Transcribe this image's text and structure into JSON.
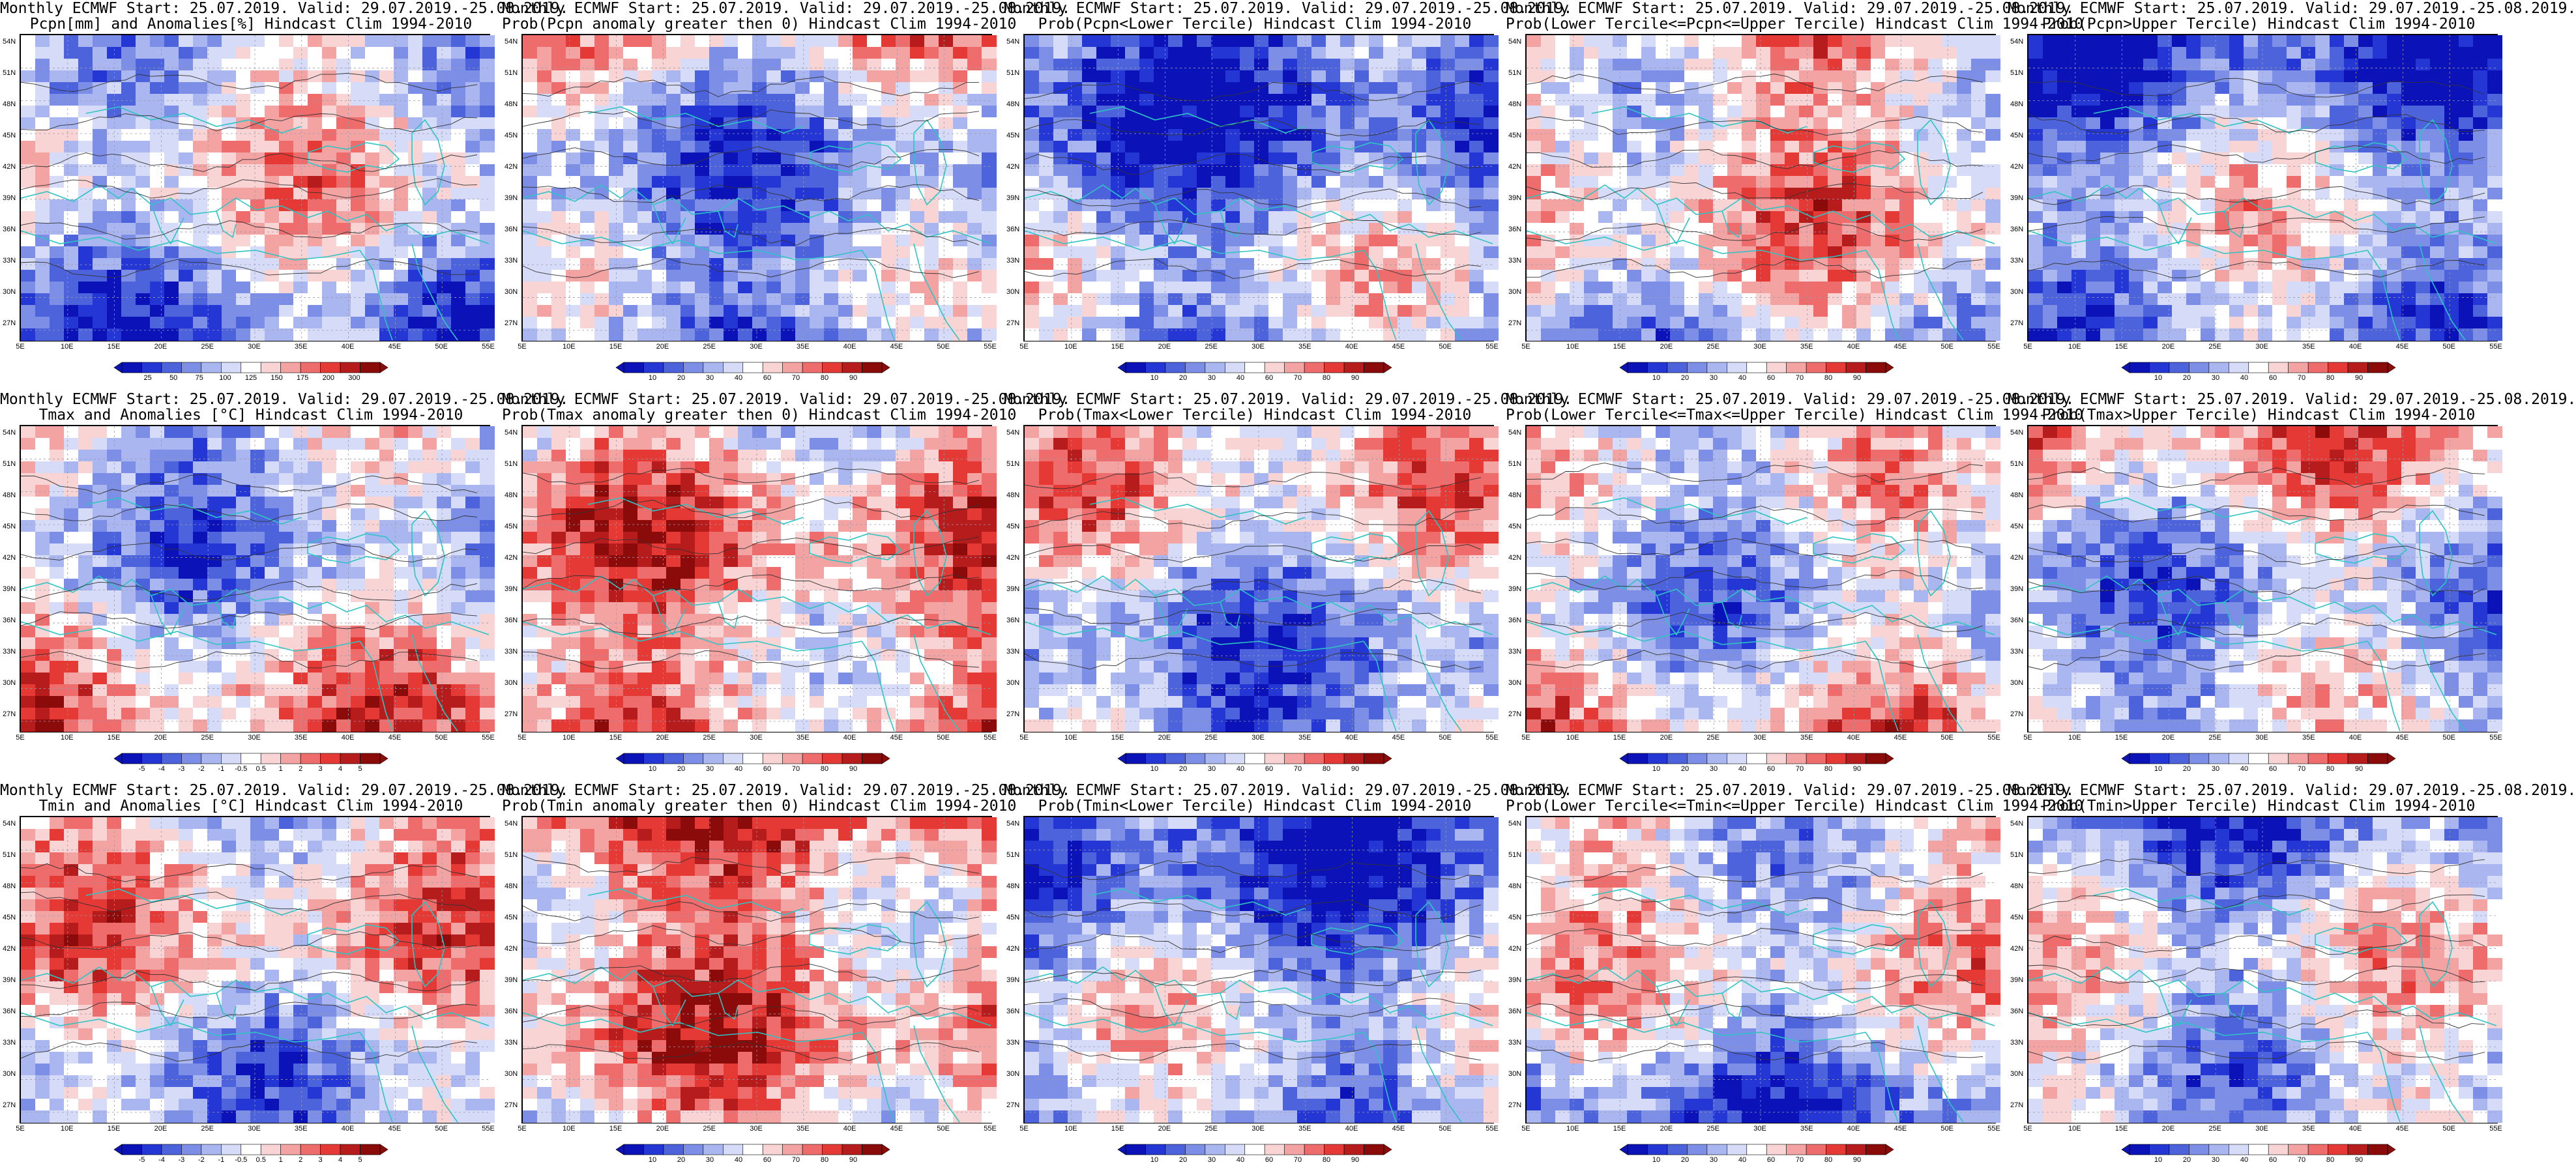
{
  "grid": {
    "y_ticks": [
      "54N",
      "51N",
      "48N",
      "45N",
      "42N",
      "39N",
      "36N",
      "33N",
      "30N",
      "27N"
    ],
    "x_ticks": [
      "5E",
      "10E",
      "15E",
      "20E",
      "25E",
      "30E",
      "35E",
      "40E",
      "45E",
      "50E",
      "55E"
    ]
  },
  "palettes": {
    "anomaly": [
      "#8b0a0a",
      "#b71c1c",
      "#e53935",
      "#ef6c6c",
      "#f4a3a3",
      "#f9d4d4",
      "#ffffff",
      "#d6dcf7",
      "#aab6ef",
      "#7c8ee6",
      "#4d63dc",
      "#2437d4",
      "#0a12b8"
    ],
    "prob": [
      "#0a12b8",
      "#2437d4",
      "#4d63dc",
      "#7c8ee6",
      "#aab6ef",
      "#d6dcf7",
      "#ffffff",
      "#f9d4d4",
      "#f4a3a3",
      "#ef6c6c",
      "#e53935",
      "#b71c1c",
      "#8b0a0a"
    ],
    "coast": "#2ec4c4",
    "contour": "#333333"
  },
  "panels": [
    {
      "id": "p1",
      "title1": "Monthly ECMWF Start: 25.07.2019. Valid: 29.07.2019.-25.08.2019.",
      "title2": "Pcpn[mm] and Anomalies[%] Hindcast Clim 1994-2010",
      "scale": "anomaly",
      "bias": 0.15,
      "cbar_labels": [
        "25",
        "50",
        "75",
        "100",
        "125",
        "150",
        "175",
        "200",
        "300"
      ]
    },
    {
      "id": "p2",
      "title1": "Monthly ECMWF Start: 25.07.2019. Valid: 29.07.2019.-25.08.2019.",
      "title2": "Prob(Pcpn anomaly greater then 0) Hindcast Clim 1994-2010",
      "scale": "prob",
      "bias": -0.35,
      "cbar_labels": [
        "10",
        "20",
        "30",
        "40",
        "60",
        "70",
        "80",
        "90"
      ]
    },
    {
      "id": "p3",
      "title1": "Monthly ECMWF Start: 25.07.2019. Valid: 29.07.2019.-25.08.2019.",
      "title2": "Prob(Pcpn<Lower Tercile) Hindcast Clim 1994-2010",
      "scale": "prob",
      "bias": -0.45,
      "cbar_labels": [
        "10",
        "20",
        "30",
        "40",
        "60",
        "70",
        "80",
        "90"
      ]
    },
    {
      "id": "p4",
      "title1": "Monthly ECMWF Start: 25.07.2019. Valid: 29.07.2019.-25.08.2019.",
      "title2": "Prob(Lower Tercile<=Pcpn<=Upper Tercile) Hindcast Clim 1994-2010",
      "scale": "prob",
      "bias": 0.1,
      "cbar_labels": [
        "10",
        "20",
        "30",
        "40",
        "60",
        "70",
        "80",
        "90"
      ]
    },
    {
      "id": "p5",
      "title1": "Monthly ECMWF Start: 25.07.2019. Valid: 29.07.2019.-25.08.2019.",
      "title2": "Prob(Pcpn>Upper Tercile) Hindcast Clim 1994-2010",
      "scale": "prob",
      "bias": -0.35,
      "cbar_labels": [
        "10",
        "20",
        "30",
        "40",
        "60",
        "70",
        "80",
        "90"
      ]
    },
    {
      "id": "p6",
      "title1": "Monthly ECMWF Start: 25.07.2019. Valid: 29.07.2019.-25.08.2019.",
      "title2": "Tmax and Anomalies [°C] Hindcast Clim 1994-2010",
      "scale": "anomaly",
      "bias": 0.1,
      "cbar_labels": [
        "-5",
        "-4",
        "-3",
        "-2",
        "-1",
        "-0.5",
        "0.5",
        "1",
        "2",
        "3",
        "4",
        "5"
      ]
    },
    {
      "id": "p7",
      "title1": "Monthly ECMWF Start: 25.07.2019. Valid: 29.07.2019.-25.08.2019.",
      "title2": "Prob(Tmax anomaly greater then 0) Hindcast Clim 1994-2010",
      "scale": "prob",
      "bias": 0.3,
      "cbar_labels": [
        "10",
        "20",
        "30",
        "40",
        "60",
        "70",
        "80",
        "90"
      ]
    },
    {
      "id": "p8",
      "title1": "Monthly ECMWF Start: 25.07.2019. Valid: 29.07.2019.-25.08.2019.",
      "title2": "Prob(Tmax<Lower Tercile) Hindcast Clim 1994-2010",
      "scale": "prob",
      "bias": -0.2,
      "cbar_labels": [
        "10",
        "20",
        "30",
        "40",
        "60",
        "70",
        "80",
        "90"
      ]
    },
    {
      "id": "p9",
      "title1": "Monthly ECMWF Start: 25.07.2019. Valid: 29.07.2019.-25.08.2019.",
      "title2": "Prob(Lower Tercile<=Tmax<=Upper Tercile) Hindcast Clim 1994-2010",
      "scale": "prob",
      "bias": -0.1,
      "cbar_labels": [
        "10",
        "20",
        "30",
        "40",
        "60",
        "70",
        "80",
        "90"
      ]
    },
    {
      "id": "p10",
      "title1": "Monthly ECMWF Start: 25.07.2019. Valid: 29.07.2019.-25.08.2019.",
      "title2": "Prob(Tmax>Upper Tercile) Hindcast Clim 1994-2010",
      "scale": "prob",
      "bias": -0.15,
      "cbar_labels": [
        "10",
        "20",
        "30",
        "40",
        "60",
        "70",
        "80",
        "90"
      ]
    },
    {
      "id": "p11",
      "title1": "Monthly ECMWF Start: 25.07.2019. Valid: 29.07.2019.-25.08.2019.",
      "title2": "Tmin and Anomalies [°C] Hindcast Clim 1994-2010",
      "scale": "anomaly",
      "bias": 0.0,
      "cbar_labels": [
        "-5",
        "-4",
        "-3",
        "-2",
        "-1",
        "-0.5",
        "0.5",
        "1",
        "2",
        "3",
        "4",
        "5"
      ]
    },
    {
      "id": "p12",
      "title1": "Monthly ECMWF Start: 25.07.2019. Valid: 29.07.2019.-25.08.2019.",
      "title2": "Prob(Tmin anomaly greater then 0) Hindcast Clim 1994-2010",
      "scale": "prob",
      "bias": 0.35,
      "cbar_labels": [
        "10",
        "20",
        "30",
        "40",
        "60",
        "70",
        "80",
        "90"
      ]
    },
    {
      "id": "p13",
      "title1": "Monthly ECMWF Start: 25.07.2019. Valid: 29.07.2019.-25.08.2019.",
      "title2": "Prob(Tmin<Lower Tercile) Hindcast Clim 1994-2010",
      "scale": "prob",
      "bias": -0.4,
      "cbar_labels": [
        "10",
        "20",
        "30",
        "40",
        "60",
        "70",
        "80",
        "90"
      ]
    },
    {
      "id": "p14",
      "title1": "Monthly ECMWF Start: 25.07.2019. Valid: 29.07.2019.-25.08.2019.",
      "title2": "Prob(Lower Tercile<=Tmin<=Upper Tercile) Hindcast Clim 1994-2010",
      "scale": "prob",
      "bias": -0.15,
      "cbar_labels": [
        "10",
        "20",
        "30",
        "40",
        "60",
        "70",
        "80",
        "90"
      ]
    },
    {
      "id": "p15",
      "title1": "Monthly ECMWF Start: 25.07.2019. Valid: 29.07.2019.-25.08.2019.",
      "title2": "Prob(Tmin>Upper Tercile) Hindcast Clim 1994-2010",
      "scale": "prob",
      "bias": -0.2,
      "cbar_labels": [
        "10",
        "20",
        "30",
        "40",
        "60",
        "70",
        "80",
        "90"
      ]
    }
  ]
}
